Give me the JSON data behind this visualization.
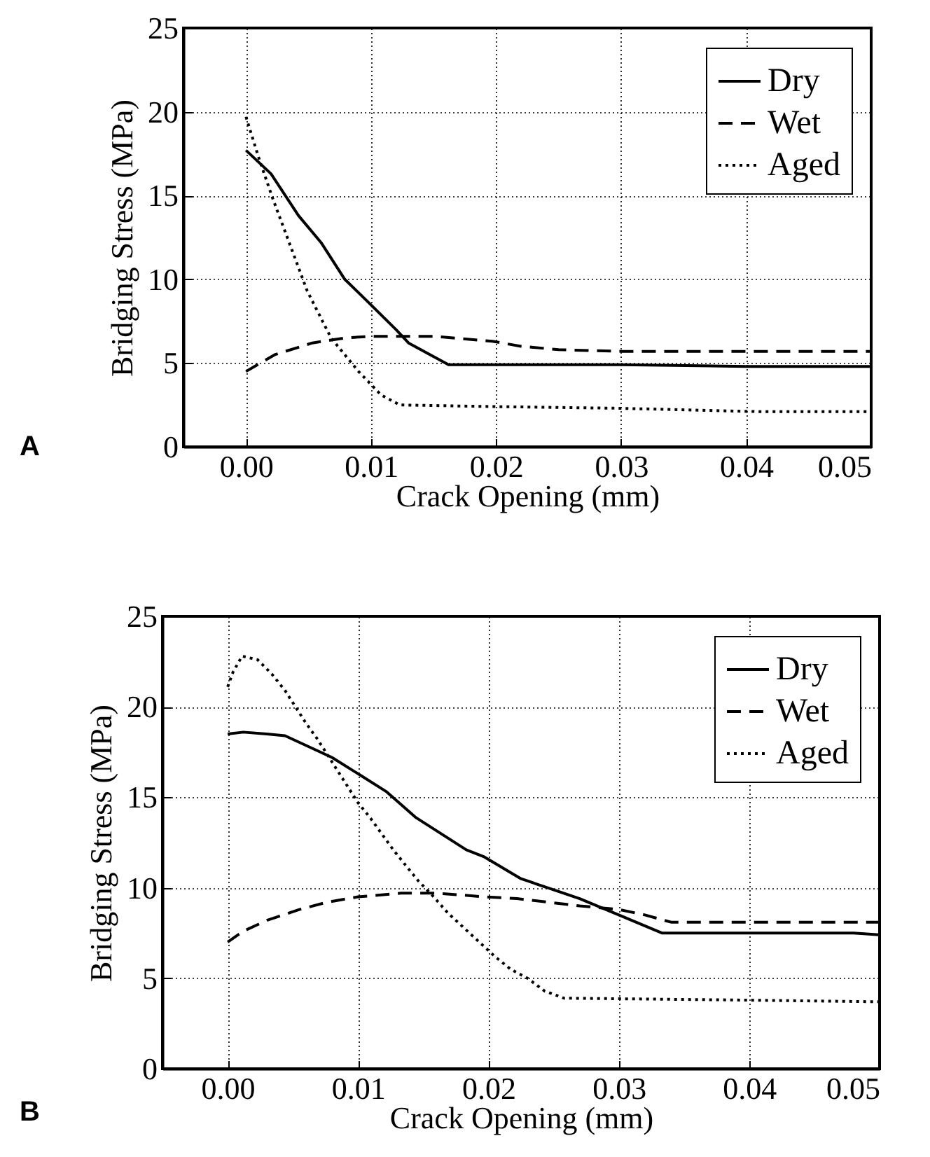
{
  "chart_data": [
    {
      "type": "line",
      "xlabel": "Crack Opening (mm)",
      "ylabel": "Bridging Stress (MPa)",
      "annotations": [
        "A"
      ],
      "xlim": [
        -0.005,
        0.05
      ],
      "xticks": [
        {
          "value": 0,
          "label": "0.00"
        },
        0.01,
        0.02,
        0.03,
        0.04,
        0.05
      ],
      "ylim": [
        0,
        25
      ],
      "yticks": [
        0,
        5,
        10,
        15,
        20,
        25
      ],
      "grid": true,
      "legend": "top right",
      "series": [
        {
          "name": "Dry",
          "color": "#000000",
          "line_style": "solid",
          "x": [
            0,
            0.002,
            0.0042,
            0.006,
            0.0079,
            0.0101,
            0.012,
            0.013,
            0.0162,
            0.025,
            0.03,
            0.04,
            0.05
          ],
          "values": [
            17.7,
            16.3,
            13.8,
            12.2,
            10.0,
            8.4,
            7.0,
            6.2,
            4.9,
            4.9,
            4.9,
            4.8,
            4.8
          ]
        },
        {
          "name": "Wet",
          "color": "#000000",
          "line_style": "dashed",
          "x": [
            0,
            0.0023,
            0.0053,
            0.0079,
            0.01,
            0.015,
            0.0197,
            0.022,
            0.025,
            0.03,
            0.04,
            0.05
          ],
          "values": [
            4.5,
            5.5,
            6.2,
            6.5,
            6.6,
            6.6,
            6.3,
            6.0,
            5.8,
            5.7,
            5.7,
            5.7
          ]
        },
        {
          "name": "Aged",
          "color": "#000000",
          "line_style": "dotted",
          "x": [
            0,
            0.001,
            0.0021,
            0.0038,
            0.0049,
            0.0068,
            0.009,
            0.0108,
            0.0123,
            0.02,
            0.03,
            0.041,
            0.05
          ],
          "values": [
            19.7,
            17.3,
            14.9,
            11.5,
            9.3,
            6.5,
            4.5,
            3.1,
            2.5,
            2.4,
            2.3,
            2.1,
            2.1
          ]
        }
      ]
    },
    {
      "type": "line",
      "xlabel": "Crack Opening (mm)",
      "ylabel": "Bridging Stress (MPa)",
      "annotations": [
        "B"
      ],
      "xlim": [
        -0.005,
        0.05
      ],
      "xticks": [
        {
          "value": 0,
          "label": "0.00"
        },
        0.01,
        0.02,
        0.03,
        0.04,
        0.05
      ],
      "ylim": [
        0,
        25
      ],
      "yticks": [
        0,
        5,
        10,
        15,
        20,
        25
      ],
      "grid": true,
      "legend": "top right",
      "series": [
        {
          "name": "Dry",
          "color": "#000000",
          "line_style": "solid",
          "x": [
            0,
            0.0012,
            0.003,
            0.0044,
            0.0062,
            0.008,
            0.01,
            0.0122,
            0.0144,
            0.0183,
            0.0197,
            0.0225,
            0.027,
            0.03,
            0.0333,
            0.048,
            0.05
          ],
          "values": [
            18.5,
            18.6,
            18.5,
            18.4,
            17.8,
            17.2,
            16.3,
            15.3,
            13.9,
            12.1,
            11.7,
            10.5,
            9.4,
            8.5,
            7.5,
            7.5,
            7.4
          ]
        },
        {
          "name": "Wet",
          "color": "#000000",
          "line_style": "dashed",
          "x": [
            0,
            0.0012,
            0.003,
            0.0055,
            0.0076,
            0.01,
            0.0133,
            0.0161,
            0.0197,
            0.0222,
            0.027,
            0.03,
            0.032,
            0.034,
            0.05
          ],
          "values": [
            7.0,
            7.6,
            8.2,
            8.8,
            9.2,
            9.5,
            9.7,
            9.7,
            9.5,
            9.4,
            9.0,
            8.8,
            8.5,
            8.1,
            8.1
          ]
        },
        {
          "name": "Aged",
          "color": "#000000",
          "line_style": "dotted",
          "x": [
            0,
            0.0004,
            0.0011,
            0.0023,
            0.0034,
            0.0044,
            0.0052,
            0.006,
            0.0069,
            0.0084,
            0.0092,
            0.01,
            0.0109,
            0.0118,
            0.0127,
            0.0137,
            0.0146,
            0.0158,
            0.0169,
            0.0181,
            0.0193,
            0.0205,
            0.0217,
            0.023,
            0.0243,
            0.0258,
            0.039,
            0.05
          ],
          "values": [
            21.1,
            21.9,
            22.8,
            22.6,
            21.8,
            20.9,
            20.0,
            19.1,
            18.2,
            16.5,
            15.6,
            14.7,
            13.9,
            13.0,
            12.1,
            11.2,
            10.4,
            9.5,
            8.6,
            7.8,
            7.0,
            6.2,
            5.5,
            5.0,
            4.3,
            3.9,
            3.8,
            3.7
          ]
        }
      ]
    }
  ]
}
